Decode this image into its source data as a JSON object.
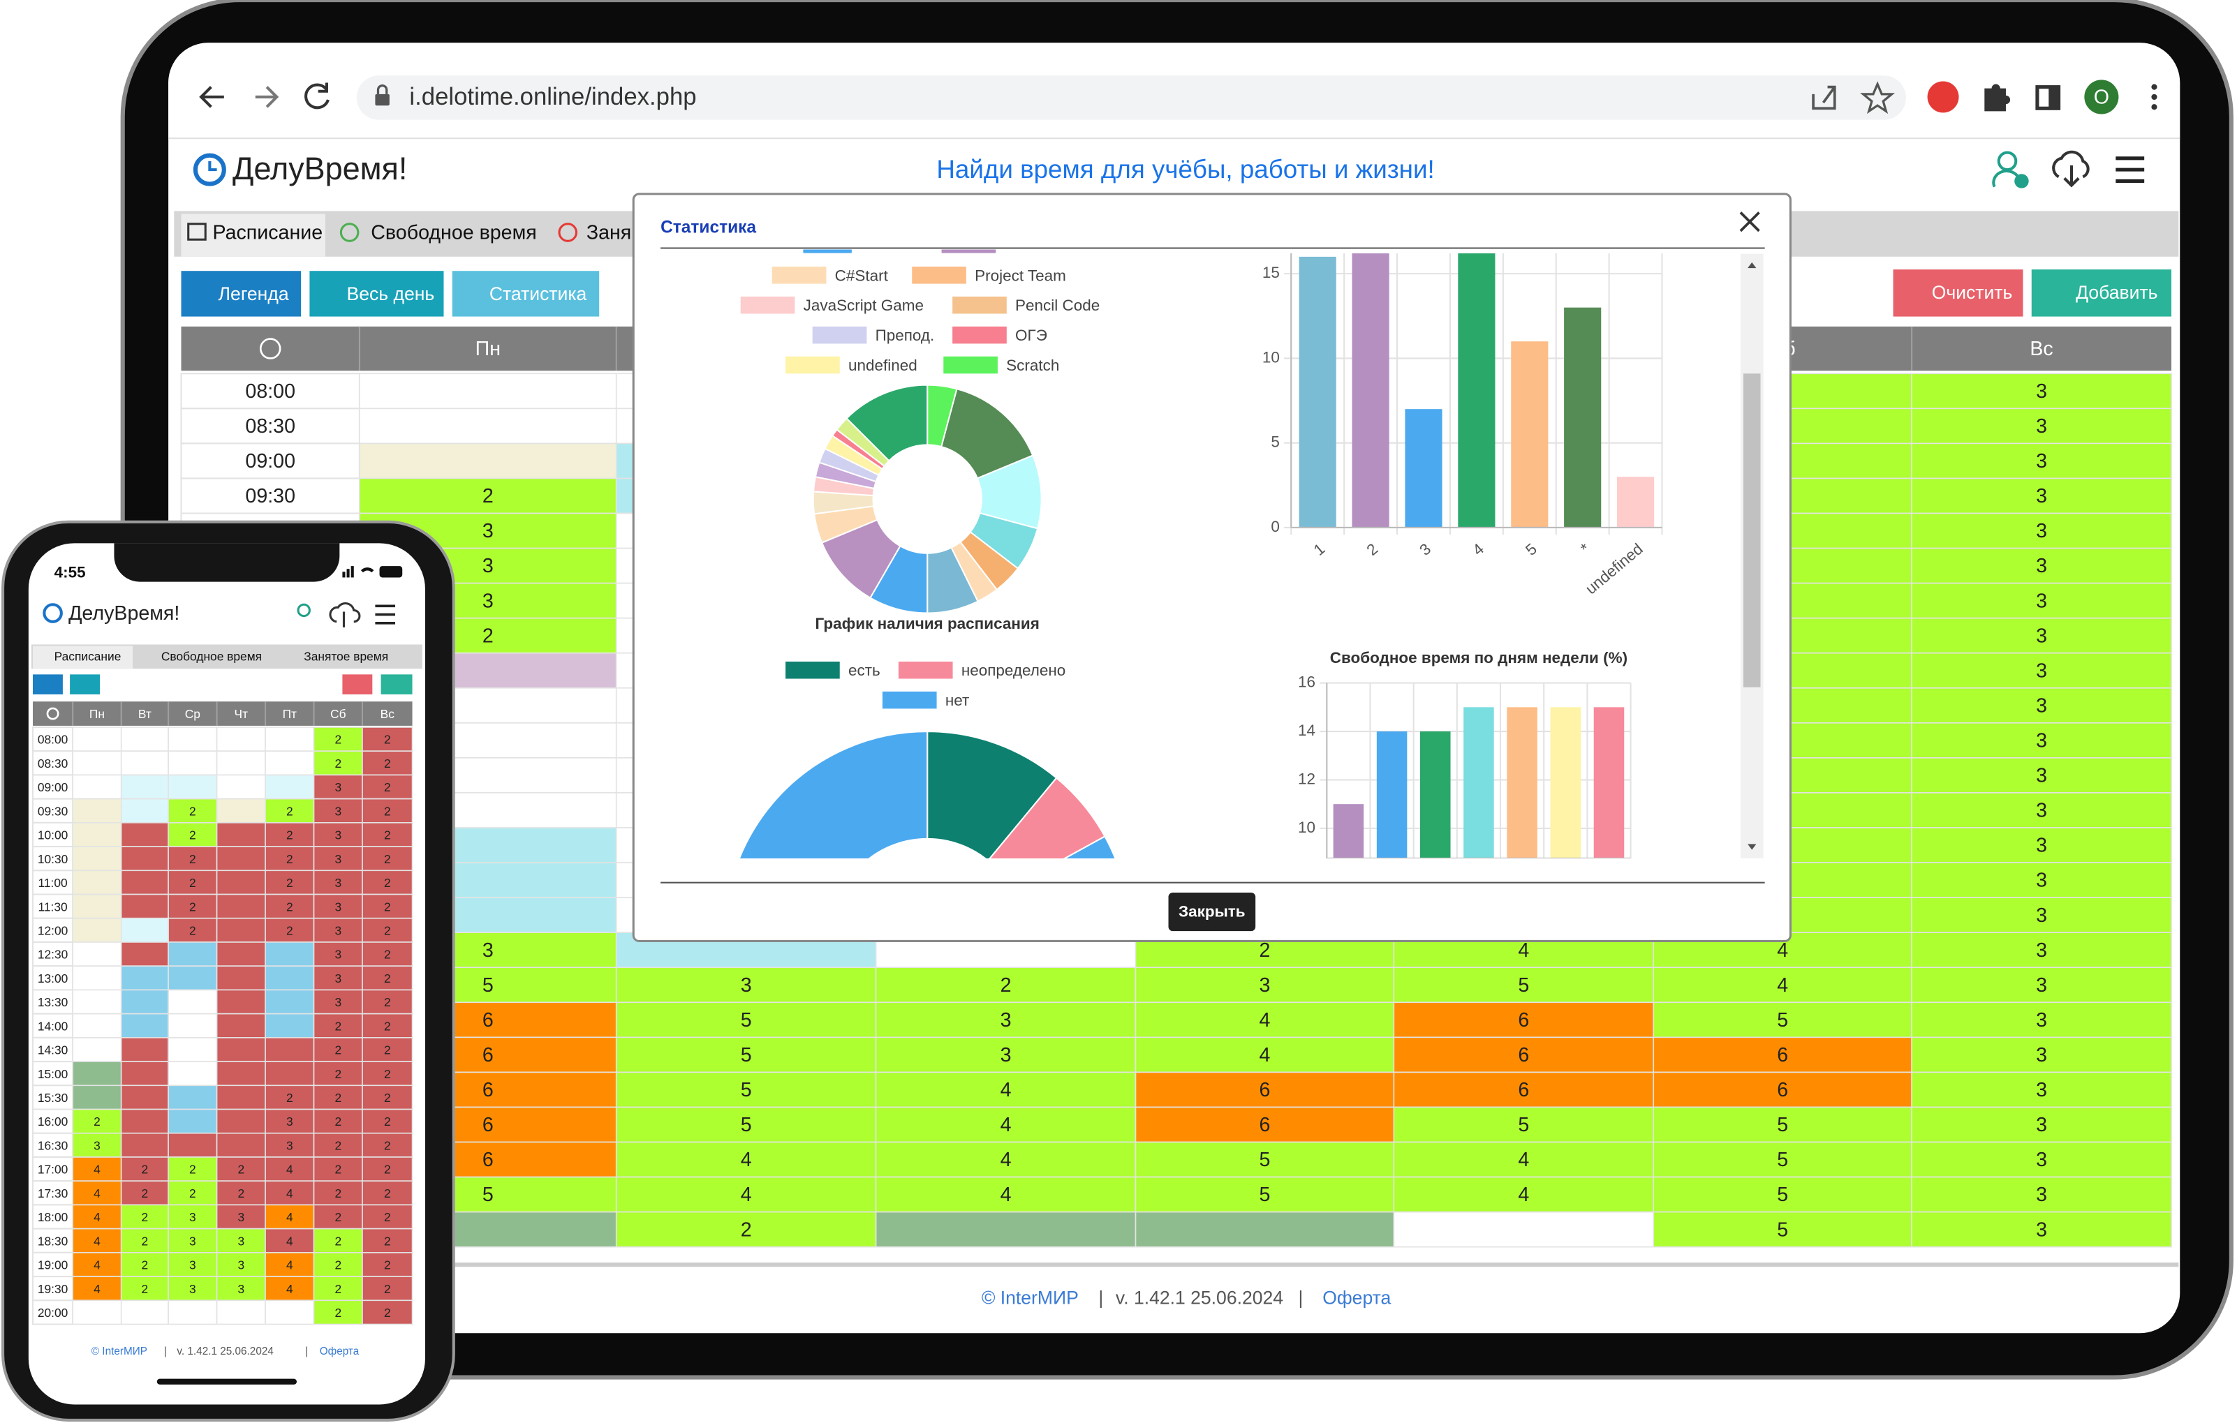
{
  "browser": {
    "url": "i.delotime.online/index.php",
    "profile": "O"
  },
  "app": {
    "brand": "ДелуВремя!",
    "slogan": "Найди время для учёбы, работы и жизни!",
    "tabs": [
      "Расписание",
      "Свободное время",
      "Заня"
    ],
    "buttons": [
      "Легенда",
      "Весь день",
      "Статистика",
      "Очистить",
      "Добавить"
    ]
  },
  "palette": {
    "w": "#ffffff",
    "g": "#adff2f",
    "o": "#ff8c00",
    "y": "#f3f0d7",
    "p": "#d8bfd8",
    "c": "#b0eaf0",
    "l": "#dcf7fb",
    "b": "#87ceeb",
    "r": "#cd5c5c",
    "s": "#8fbc8f"
  },
  "schedule": {
    "headers": [
      "Пн",
      null,
      null,
      null,
      null,
      "Сб",
      "Вс"
    ],
    "times": [
      "08:00",
      "08:30",
      "09:00",
      "09:30"
    ],
    "rows": [
      [
        [
          "w"
        ],
        [
          "w"
        ],
        [
          "w"
        ],
        [
          "w"
        ],
        [
          "w"
        ],
        [
          "g"
        ],
        [
          "g",
          3
        ]
      ],
      [
        [
          "w"
        ],
        [
          "w"
        ],
        [
          "w"
        ],
        [
          "w"
        ],
        [
          "w"
        ],
        [
          "g"
        ],
        [
          "g",
          3
        ]
      ],
      [
        [
          "y"
        ],
        [
          "c"
        ],
        [
          "w"
        ],
        [
          "w"
        ],
        [
          "w"
        ],
        [
          "g"
        ],
        [
          "g",
          3
        ]
      ],
      [
        [
          "g",
          2
        ],
        [
          "c"
        ],
        [
          "w"
        ],
        [
          "w"
        ],
        [
          "w"
        ],
        [
          "g"
        ],
        [
          "g",
          3
        ]
      ],
      [
        [
          "g",
          3
        ],
        [
          "w"
        ],
        [
          "w"
        ],
        [
          "w"
        ],
        [
          "w"
        ],
        [
          "g"
        ],
        [
          "g",
          3
        ]
      ],
      [
        [
          "g",
          3
        ],
        [
          "w"
        ],
        [
          "w"
        ],
        [
          "w"
        ],
        [
          "w"
        ],
        [
          "g"
        ],
        [
          "g",
          3
        ]
      ],
      [
        [
          "g",
          3
        ],
        [
          "w"
        ],
        [
          "w"
        ],
        [
          "w"
        ],
        [
          "w"
        ],
        [
          "g"
        ],
        [
          "g",
          3
        ]
      ],
      [
        [
          "g",
          2
        ],
        [
          "w"
        ],
        [
          "w"
        ],
        [
          "w"
        ],
        [
          "w"
        ],
        [
          "g"
        ],
        [
          "g",
          3
        ]
      ],
      [
        [
          "p"
        ],
        [
          "w"
        ],
        [
          "w"
        ],
        [
          "w"
        ],
        [
          "w"
        ],
        [
          "g"
        ],
        [
          "g",
          3
        ]
      ],
      [
        [
          "w"
        ],
        [
          "w"
        ],
        [
          "w"
        ],
        [
          "w"
        ],
        [
          "w"
        ],
        [
          "g"
        ],
        [
          "g",
          3
        ]
      ],
      [
        [
          "w"
        ],
        [
          "w"
        ],
        [
          "w"
        ],
        [
          "w"
        ],
        [
          "w"
        ],
        [
          "g"
        ],
        [
          "g",
          3
        ]
      ],
      [
        [
          "w"
        ],
        [
          "w"
        ],
        [
          "w"
        ],
        [
          "w"
        ],
        [
          "w"
        ],
        [
          "g"
        ],
        [
          "g",
          3
        ]
      ],
      [
        [
          "w"
        ],
        [
          "w"
        ],
        [
          "w"
        ],
        [
          "w"
        ],
        [
          "w"
        ],
        [
          "g"
        ],
        [
          "g",
          3
        ]
      ],
      [
        [
          "c"
        ],
        [
          "w"
        ],
        [
          "w"
        ],
        [
          "w"
        ],
        [
          "w"
        ],
        [
          "g"
        ],
        [
          "g",
          3
        ]
      ],
      [
        [
          "c"
        ],
        [
          "w"
        ],
        [
          "w"
        ],
        [
          "w"
        ],
        [
          "w"
        ],
        [
          "g"
        ],
        [
          "g",
          3
        ]
      ],
      [
        [
          "c"
        ],
        [
          "w"
        ],
        [
          "w"
        ],
        [
          "w"
        ],
        [
          "w"
        ],
        [
          "g"
        ],
        [
          "g",
          3
        ]
      ],
      [
        [
          "g",
          3
        ],
        [
          "c"
        ],
        [
          "w"
        ],
        [
          "g",
          2
        ],
        [
          "g",
          4
        ],
        [
          "g",
          4
        ],
        [
          "g",
          3
        ]
      ],
      [
        [
          "g",
          5
        ],
        [
          "g",
          3
        ],
        [
          "g",
          2
        ],
        [
          "g",
          3
        ],
        [
          "g",
          5
        ],
        [
          "g",
          4
        ],
        [
          "g",
          3
        ]
      ],
      [
        [
          "o",
          6
        ],
        [
          "g",
          5
        ],
        [
          "g",
          3
        ],
        [
          "g",
          4
        ],
        [
          "o",
          6
        ],
        [
          "g",
          5
        ],
        [
          "g",
          3
        ]
      ],
      [
        [
          "o",
          6
        ],
        [
          "g",
          5
        ],
        [
          "g",
          3
        ],
        [
          "g",
          4
        ],
        [
          "o",
          6
        ],
        [
          "o",
          6
        ],
        [
          "g",
          3
        ]
      ],
      [
        [
          "o",
          6
        ],
        [
          "g",
          5
        ],
        [
          "g",
          4
        ],
        [
          "o",
          6
        ],
        [
          "o",
          6
        ],
        [
          "o",
          6
        ],
        [
          "g",
          3
        ]
      ],
      [
        [
          "o",
          6
        ],
        [
          "g",
          5
        ],
        [
          "g",
          4
        ],
        [
          "o",
          6
        ],
        [
          "g",
          5
        ],
        [
          "g",
          5
        ],
        [
          "g",
          3
        ]
      ],
      [
        [
          "o",
          6
        ],
        [
          "g",
          4
        ],
        [
          "g",
          4
        ],
        [
          "g",
          5
        ],
        [
          "g",
          4
        ],
        [
          "g",
          5
        ],
        [
          "g",
          3
        ]
      ],
      [
        [
          "g",
          5
        ],
        [
          "g",
          4
        ],
        [
          "g",
          4
        ],
        [
          "g",
          5
        ],
        [
          "g",
          4
        ],
        [
          "g",
          5
        ],
        [
          "g",
          3
        ]
      ],
      [
        [
          "s"
        ],
        [
          "g",
          2
        ],
        [
          "s"
        ],
        [
          "s"
        ],
        [
          "w"
        ],
        [
          "g",
          5
        ],
        [
          "g",
          3
        ]
      ]
    ]
  },
  "footer": {
    "copyright": "© InterМИР",
    "version": "v. 1.42.1  25.06.2024",
    "offer": "Оферта"
  },
  "modal": {
    "title": "Статистика",
    "close": "Закрыть"
  },
  "chart_data": [
    {
      "type": "pie",
      "legend": [
        {
          "name": "C#Start",
          "color": "#fddcb5"
        },
        {
          "name": "Project Team",
          "color": "#fdbd87"
        },
        {
          "name": "JavaScript Game",
          "color": "#fdcccc"
        },
        {
          "name": "Pencil Code",
          "color": "#f5c28d"
        },
        {
          "name": "Препод.",
          "color": "#d0d0f0"
        },
        {
          "name": "ОГЭ",
          "color": "#f77f8f"
        },
        {
          "name": "undefined",
          "color": "#fef3a6"
        },
        {
          "name": "Scratch",
          "color": "#5cf25c"
        }
      ],
      "values": [
        4,
        14,
        10,
        6,
        4,
        3,
        7,
        8,
        10,
        4,
        3,
        2,
        2,
        2,
        2,
        1,
        2,
        12
      ],
      "colors": [
        "#5cf25c",
        "#558b55",
        "#b7fbfd",
        "#7adde0",
        "#f5b070",
        "#fddcb5",
        "#7ab8d4",
        "#4ba9f0",
        "#b891c0",
        "#fddcb5",
        "#f5e6c8",
        "#fdcccc",
        "#c8a8d8",
        "#d0d0f0",
        "#fef3a6",
        "#f77f8f",
        "#d8f08a",
        "#2aa86a"
      ],
      "hole": 0.475
    },
    {
      "type": "bar",
      "categories": [
        "1",
        "2",
        "3",
        "4",
        "5",
        "*",
        "undefined"
      ],
      "values": [
        16,
        16.2,
        7,
        16.2,
        11,
        13,
        3
      ],
      "colors": [
        "#7bbcd5",
        "#b48fc0",
        "#4ba9f0",
        "#2aa86a",
        "#fdbd87",
        "#558b55",
        "#ffcccc"
      ],
      "ylim": [
        0,
        16.2
      ],
      "yticks": [
        0,
        5,
        10,
        15
      ],
      "grid": true
    },
    {
      "type": "pie",
      "title": "График наличия расписания",
      "categories": [
        "есть",
        "неопределено",
        "нет"
      ],
      "values": [
        11,
        6,
        83
      ],
      "colors": [
        "#0d8070",
        "#f78a9a",
        "#4ba9f0"
      ],
      "hole": 0.47
    },
    {
      "type": "bar",
      "title": "Свободное время по дням недели (%)",
      "values": [
        11,
        14,
        14,
        15,
        15,
        15,
        15
      ],
      "colors": [
        "#b48fc0",
        "#4ba9f0",
        "#2aa86a",
        "#7adde0",
        "#fdbd87",
        "#fef3a6",
        "#f78a9a"
      ],
      "ylim": [
        8.76,
        16
      ],
      "yticks": [
        10,
        12,
        14,
        16
      ],
      "grid": true
    }
  ],
  "phone": {
    "time": "4:55",
    "brand": "ДелуВремя!",
    "tabs": [
      "Расписание",
      "Свободное время",
      "Занятое время"
    ],
    "headers": [
      "Пн",
      "Вт",
      "Ср",
      "Чт",
      "Пт",
      "Сб",
      "Вс"
    ],
    "times": [
      "08:00",
      "08:30",
      "09:00",
      "09:30",
      "10:00",
      "10:30",
      "11:00",
      "11:30",
      "12:00",
      "12:30",
      "13:00",
      "13:30",
      "14:00",
      "14:30",
      "15:00",
      "15:30",
      "16:00",
      "16:30",
      "17:00",
      "17:30",
      "18:00",
      "18:30",
      "19:00",
      "19:30",
      "20:00"
    ],
    "rows": [
      [
        [
          "w"
        ],
        [
          "w"
        ],
        [
          "w"
        ],
        [
          "w"
        ],
        [
          "w"
        ],
        [
          "g",
          2
        ],
        [
          "r",
          2
        ]
      ],
      [
        [
          "w"
        ],
        [
          "w"
        ],
        [
          "w"
        ],
        [
          "w"
        ],
        [
          "w"
        ],
        [
          "g",
          2
        ],
        [
          "r",
          2
        ]
      ],
      [
        [
          "w"
        ],
        [
          "l"
        ],
        [
          "l"
        ],
        [
          "w"
        ],
        [
          "l"
        ],
        [
          "r",
          3
        ],
        [
          "r",
          2
        ]
      ],
      [
        [
          "y"
        ],
        [
          "l"
        ],
        [
          "g",
          2
        ],
        [
          "y"
        ],
        [
          "g",
          2
        ],
        [
          "r",
          3
        ],
        [
          "r",
          2
        ]
      ],
      [
        [
          "y"
        ],
        [
          "r"
        ],
        [
          "g",
          2
        ],
        [
          "r"
        ],
        [
          "r",
          2
        ],
        [
          "r",
          3
        ],
        [
          "r",
          2
        ]
      ],
      [
        [
          "y"
        ],
        [
          "r"
        ],
        [
          "r",
          2
        ],
        [
          "r"
        ],
        [
          "r",
          2
        ],
        [
          "r",
          3
        ],
        [
          "r",
          2
        ]
      ],
      [
        [
          "y"
        ],
        [
          "r"
        ],
        [
          "r",
          2
        ],
        [
          "r"
        ],
        [
          "r",
          2
        ],
        [
          "r",
          3
        ],
        [
          "r",
          2
        ]
      ],
      [
        [
          "y"
        ],
        [
          "r"
        ],
        [
          "r",
          2
        ],
        [
          "r"
        ],
        [
          "r",
          2
        ],
        [
          "r",
          3
        ],
        [
          "r",
          2
        ]
      ],
      [
        [
          "y"
        ],
        [
          "l"
        ],
        [
          "r",
          2
        ],
        [
          "r"
        ],
        [
          "r",
          2
        ],
        [
          "r",
          3
        ],
        [
          "r",
          2
        ]
      ],
      [
        [
          "w"
        ],
        [
          "r"
        ],
        [
          "b"
        ],
        [
          "r"
        ],
        [
          "b"
        ],
        [
          "r",
          3
        ],
        [
          "r",
          2
        ]
      ],
      [
        [
          "w"
        ],
        [
          "b"
        ],
        [
          "b"
        ],
        [
          "r"
        ],
        [
          "b"
        ],
        [
          "r",
          3
        ],
        [
          "r",
          2
        ]
      ],
      [
        [
          "w"
        ],
        [
          "b"
        ],
        [
          "w"
        ],
        [
          "r"
        ],
        [
          "b"
        ],
        [
          "r",
          3
        ],
        [
          "r",
          2
        ]
      ],
      [
        [
          "w"
        ],
        [
          "b"
        ],
        [
          "w"
        ],
        [
          "r"
        ],
        [
          "b"
        ],
        [
          "r",
          2
        ],
        [
          "r",
          2
        ]
      ],
      [
        [
          "w"
        ],
        [
          "r"
        ],
        [
          "w"
        ],
        [
          "r"
        ],
        [
          "r"
        ],
        [
          "r",
          2
        ],
        [
          "r",
          2
        ]
      ],
      [
        [
          "s"
        ],
        [
          "r"
        ],
        [
          "w"
        ],
        [
          "r"
        ],
        [
          "r"
        ],
        [
          "r",
          2
        ],
        [
          "r",
          2
        ]
      ],
      [
        [
          "s"
        ],
        [
          "r"
        ],
        [
          "b"
        ],
        [
          "r"
        ],
        [
          "r",
          2
        ],
        [
          "r",
          2
        ],
        [
          "r",
          2
        ]
      ],
      [
        [
          "g",
          2
        ],
        [
          "r"
        ],
        [
          "b"
        ],
        [
          "r"
        ],
        [
          "r",
          3
        ],
        [
          "r",
          2
        ],
        [
          "r",
          2
        ]
      ],
      [
        [
          "g",
          3
        ],
        [
          "r"
        ],
        [
          "r"
        ],
        [
          "r"
        ],
        [
          "r",
          3
        ],
        [
          "r",
          2
        ],
        [
          "r",
          2
        ]
      ],
      [
        [
          "o",
          4
        ],
        [
          "r",
          2
        ],
        [
          "g",
          2
        ],
        [
          "r",
          2
        ],
        [
          "r",
          4
        ],
        [
          "r",
          2
        ],
        [
          "r",
          2
        ]
      ],
      [
        [
          "o",
          4
        ],
        [
          "r",
          2
        ],
        [
          "g",
          2
        ],
        [
          "r",
          2
        ],
        [
          "r",
          4
        ],
        [
          "r",
          2
        ],
        [
          "r",
          2
        ]
      ],
      [
        [
          "o",
          4
        ],
        [
          "g",
          2
        ],
        [
          "g",
          3
        ],
        [
          "r",
          3
        ],
        [
          "o",
          4
        ],
        [
          "r",
          2
        ],
        [
          "r",
          2
        ]
      ],
      [
        [
          "o",
          4
        ],
        [
          "g",
          2
        ],
        [
          "g",
          3
        ],
        [
          "g",
          3
        ],
        [
          "r",
          4
        ],
        [
          "g",
          2
        ],
        [
          "r",
          2
        ]
      ],
      [
        [
          "o",
          4
        ],
        [
          "g",
          2
        ],
        [
          "g",
          3
        ],
        [
          "g",
          3
        ],
        [
          "o",
          4
        ],
        [
          "g",
          2
        ],
        [
          "r",
          2
        ]
      ],
      [
        [
          "o",
          4
        ],
        [
          "g",
          2
        ],
        [
          "g",
          3
        ],
        [
          "g",
          3
        ],
        [
          "o",
          4
        ],
        [
          "g",
          2
        ],
        [
          "r",
          2
        ]
      ],
      [
        [
          "w"
        ],
        [
          "w"
        ],
        [
          "w"
        ],
        [
          "w"
        ],
        [
          "w"
        ],
        [
          "g",
          2
        ],
        [
          "r",
          2
        ]
      ]
    ],
    "footer": {
      "copyright": "© InterМИР",
      "version": "v. 1.42.1  25.06.2024",
      "offer": "Оферта"
    }
  }
}
